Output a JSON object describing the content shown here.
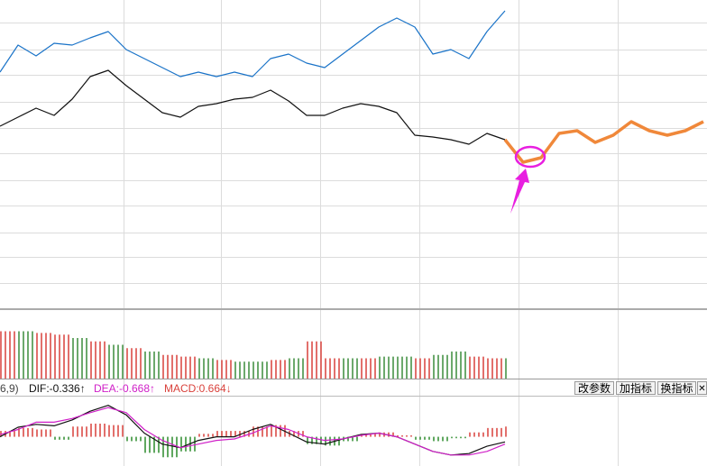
{
  "chart_data": [
    {
      "type": "line",
      "xlim": [
        0,
        784
      ],
      "ylim": [
        0,
        342
      ],
      "x": [
        0,
        20,
        40,
        60,
        80,
        100,
        120,
        140,
        160,
        180,
        200,
        220,
        240,
        260,
        280,
        300,
        320,
        340,
        360,
        380,
        400,
        420,
        440,
        460,
        480,
        500,
        520,
        540,
        560,
        580,
        600,
        620,
        640,
        660,
        680,
        700,
        720,
        740,
        760,
        780
      ],
      "series": [
        {
          "color": "#1a73c8",
          "values": [
            262,
            292,
            280,
            294,
            292,
            300,
            307,
            287,
            277,
            267,
            257,
            262,
            257,
            262,
            257,
            277,
            282,
            272,
            267,
            282,
            297,
            312,
            322,
            312,
            282,
            287,
            277,
            307,
            330,
            null,
            null,
            null,
            null,
            null,
            null,
            null,
            null,
            null,
            null,
            null
          ]
        },
        {
          "color": "#111111",
          "values": [
            202,
            212,
            222,
            214,
            232,
            257,
            264,
            247,
            232,
            217,
            212,
            224,
            227,
            232,
            234,
            242,
            230,
            214,
            214,
            222,
            227,
            224,
            217,
            192,
            190,
            187,
            182,
            194,
            187,
            null,
            null,
            null,
            null,
            null,
            null,
            null,
            null,
            null,
            null,
            null
          ]
        },
        {
          "color": "#f0883a",
          "values": [
            null,
            null,
            null,
            null,
            null,
            null,
            null,
            null,
            null,
            null,
            null,
            null,
            null,
            null,
            null,
            null,
            null,
            null,
            null,
            null,
            null,
            null,
            null,
            null,
            null,
            null,
            null,
            null,
            187,
            162,
            167,
            194,
            197,
            184,
            192,
            207,
            197,
            192,
            197,
            207
          ]
        }
      ]
    },
    {
      "type": "bar",
      "xlim": [
        0,
        784
      ],
      "ylim": [
        0,
        40
      ],
      "x": [
        0,
        20,
        40,
        60,
        80,
        100,
        120,
        140,
        160,
        180,
        200,
        220,
        240,
        260,
        280,
        300,
        320,
        340,
        360,
        380,
        400,
        420,
        440,
        460,
        480,
        500,
        520,
        540,
        560
      ],
      "values": [
        28,
        28,
        27,
        26,
        24,
        22,
        20,
        18,
        16,
        14,
        13,
        12,
        11,
        10,
        10,
        11,
        12,
        22,
        12,
        12,
        12,
        13,
        13,
        12,
        14,
        16,
        13,
        12,
        12
      ],
      "colors": [
        "#d9413b",
        "#3a8c3a",
        "#d9413b",
        "#d9413b",
        "#3a8c3a",
        "#d9413b",
        "#3a8c3a",
        "#d9413b",
        "#3a8c3a",
        "#d9413b",
        "#d9413b",
        "#3a8c3a",
        "#d9413b",
        "#3a8c3a",
        "#3a8c3a",
        "#d9413b",
        "#3a8c3a",
        "#d9413b",
        "#d9413b",
        "#3a8c3a",
        "#d9413b",
        "#3a8c3a",
        "#3a8c3a",
        "#d9413b",
        "#3a8c3a",
        "#3a8c3a",
        "#d9413b",
        "#d9413b",
        "#3a8c3a"
      ]
    },
    {
      "type": "macd",
      "xlim": [
        0,
        784
      ],
      "ylim": [
        -40,
        55
      ],
      "x": [
        0,
        20,
        40,
        60,
        80,
        100,
        120,
        140,
        160,
        180,
        200,
        220,
        240,
        260,
        280,
        300,
        320,
        340,
        360,
        380,
        400,
        420,
        440,
        460,
        480,
        500,
        520,
        540,
        560
      ],
      "series": [
        {
          "color": "#111111",
          "values": [
            0,
            13,
            17,
            15,
            23,
            35,
            43,
            30,
            5,
            -10,
            -15,
            -5,
            0,
            0,
            10,
            17,
            5,
            -7,
            -10,
            -3,
            3,
            5,
            0,
            -10,
            -20,
            -25,
            -23,
            -13,
            -7
          ]
        },
        {
          "color": "#d020c8",
          "values": [
            3,
            10,
            20,
            20,
            25,
            33,
            40,
            33,
            10,
            -5,
            -15,
            -10,
            -5,
            -3,
            5,
            15,
            10,
            0,
            -5,
            -3,
            2,
            5,
            0,
            -10,
            -20,
            -25,
            -25,
            -20,
            -10
          ]
        }
      ],
      "histogram": {
        "values": [
          8,
          12,
          10,
          -4,
          14,
          18,
          16,
          -6,
          -22,
          -28,
          -20,
          4,
          8,
          8,
          14,
          16,
          8,
          -10,
          -12,
          -6,
          4,
          6,
          2,
          -4,
          -6,
          -2,
          6,
          12,
          14
        ],
        "up_color": "#d9413b",
        "down_color": "#2a8a2a"
      }
    }
  ],
  "toolbar": {
    "params": "6,9)",
    "dif": "DIF:-0.336↑",
    "dea": "DEA:-0.668↑",
    "macd": "MACD:0.664↓",
    "buttons": [
      "改参数",
      "加指标",
      "换指标",
      "✕"
    ]
  }
}
